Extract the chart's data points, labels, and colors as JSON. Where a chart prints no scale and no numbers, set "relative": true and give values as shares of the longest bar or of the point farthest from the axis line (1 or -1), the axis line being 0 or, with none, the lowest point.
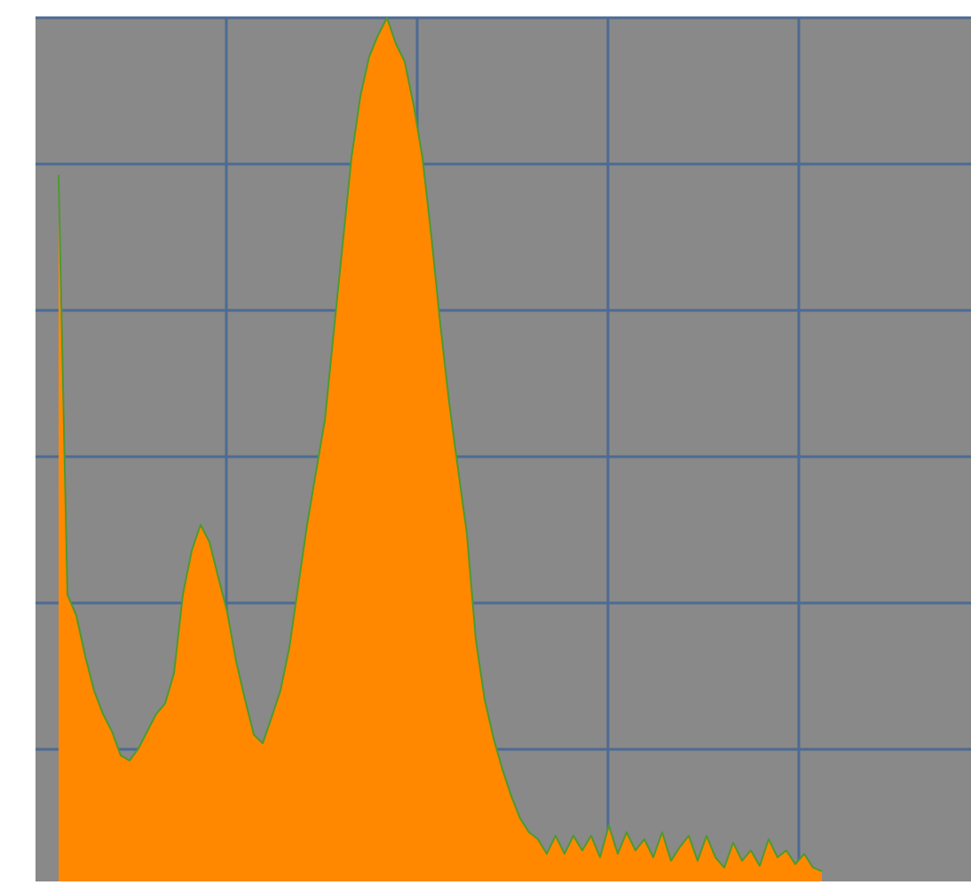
{
  "chart_data": {
    "type": "area",
    "relative": true,
    "grid": true,
    "categories": [
      null,
      null,
      null,
      null,
      null,
      null,
      null,
      null,
      null,
      null,
      null,
      null,
      null,
      null,
      null,
      null,
      null,
      null,
      null,
      null,
      null,
      null,
      null,
      null,
      null,
      null,
      null,
      null,
      null,
      null,
      null,
      null,
      null,
      null,
      null,
      null,
      null,
      null,
      null,
      null,
      null,
      null,
      null,
      null,
      null,
      null,
      null,
      null,
      null,
      null,
      null,
      null,
      null,
      null,
      null,
      null,
      null,
      null,
      null,
      null,
      null,
      null,
      null,
      null,
      null,
      null,
      null,
      null,
      null,
      null,
      null,
      null,
      null,
      null,
      null,
      null,
      null,
      null,
      null,
      null,
      null,
      null,
      null,
      null,
      null,
      null,
      null
    ],
    "series": [
      {
        "color": "#ff8800",
        "values": [
          0.818,
          0.332,
          0.308,
          0.261,
          0.221,
          0.194,
          0.174,
          0.146,
          0.14,
          0.154,
          0.174,
          0.194,
          0.206,
          0.241,
          0.332,
          0.383,
          0.413,
          0.393,
          0.352,
          0.312,
          0.255,
          0.211,
          0.17,
          0.16,
          0.19,
          0.221,
          0.271,
          0.342,
          0.413,
          0.474,
          0.534,
          0.636,
          0.737,
          0.838,
          0.909,
          0.955,
          0.98,
          1,
          0.97,
          0.949,
          0.899,
          0.838,
          0.747,
          0.646,
          0.555,
          0.478,
          0.403,
          0.281,
          0.211,
          0.166,
          0.13,
          0.099,
          0.073,
          0.057,
          0.049,
          0.032,
          0.053,
          0.032,
          0.053,
          0.036,
          0.053,
          0.028,
          0.065,
          0.032,
          0.057,
          0.036,
          0.049,
          0.028,
          0.057,
          0.024,
          0.04,
          0.053,
          0.024,
          0.053,
          0.028,
          0.016,
          0.045,
          0.024,
          0.036,
          0.018,
          0.049,
          0.028,
          0.036,
          0.02,
          0.032,
          0.016,
          0.012
        ]
      }
    ]
  }
}
